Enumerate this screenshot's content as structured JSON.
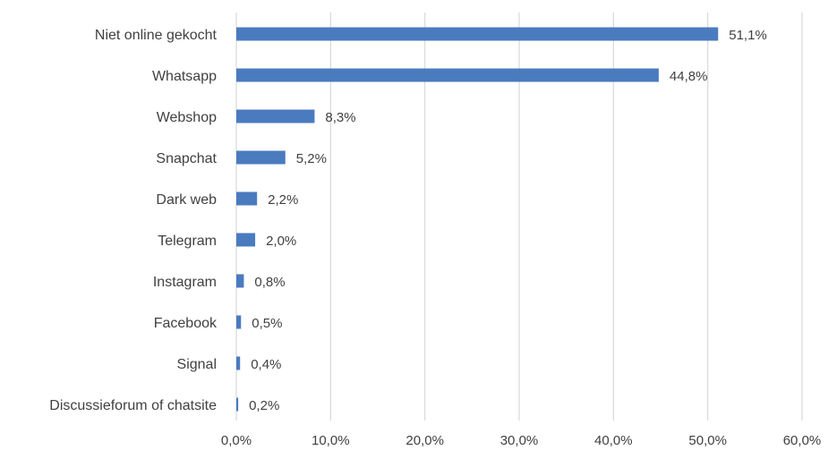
{
  "chart_data": {
    "type": "bar",
    "orientation": "horizontal",
    "categories": [
      "Niet online gekocht",
      "Whatsapp",
      "Webshop",
      "Snapchat",
      "Dark web",
      "Telegram",
      "Instagram",
      "Facebook",
      "Signal",
      "Discussieforum of chatsite"
    ],
    "values": [
      51.1,
      44.8,
      8.3,
      5.2,
      2.2,
      2.0,
      0.8,
      0.5,
      0.4,
      0.2
    ],
    "data_labels": [
      "51,1%",
      "44,8%",
      "8,3%",
      "5,2%",
      "2,2%",
      "2,0%",
      "0,8%",
      "0,5%",
      "0,4%",
      "0,2%"
    ],
    "x_ticks": [
      0,
      10,
      20,
      30,
      40,
      50,
      60
    ],
    "x_tick_labels": [
      "0,0%",
      "10,0%",
      "20,0%",
      "30,0%",
      "40,0%",
      "50,0%",
      "60,0%"
    ],
    "xlim": [
      0,
      60
    ],
    "title": "",
    "xlabel": "",
    "ylabel": "",
    "grid": "vertical",
    "legend": "none",
    "bar_color": "#4a7bbf",
    "grid_color": "#d9d9d9",
    "text_color": "#404040"
  }
}
